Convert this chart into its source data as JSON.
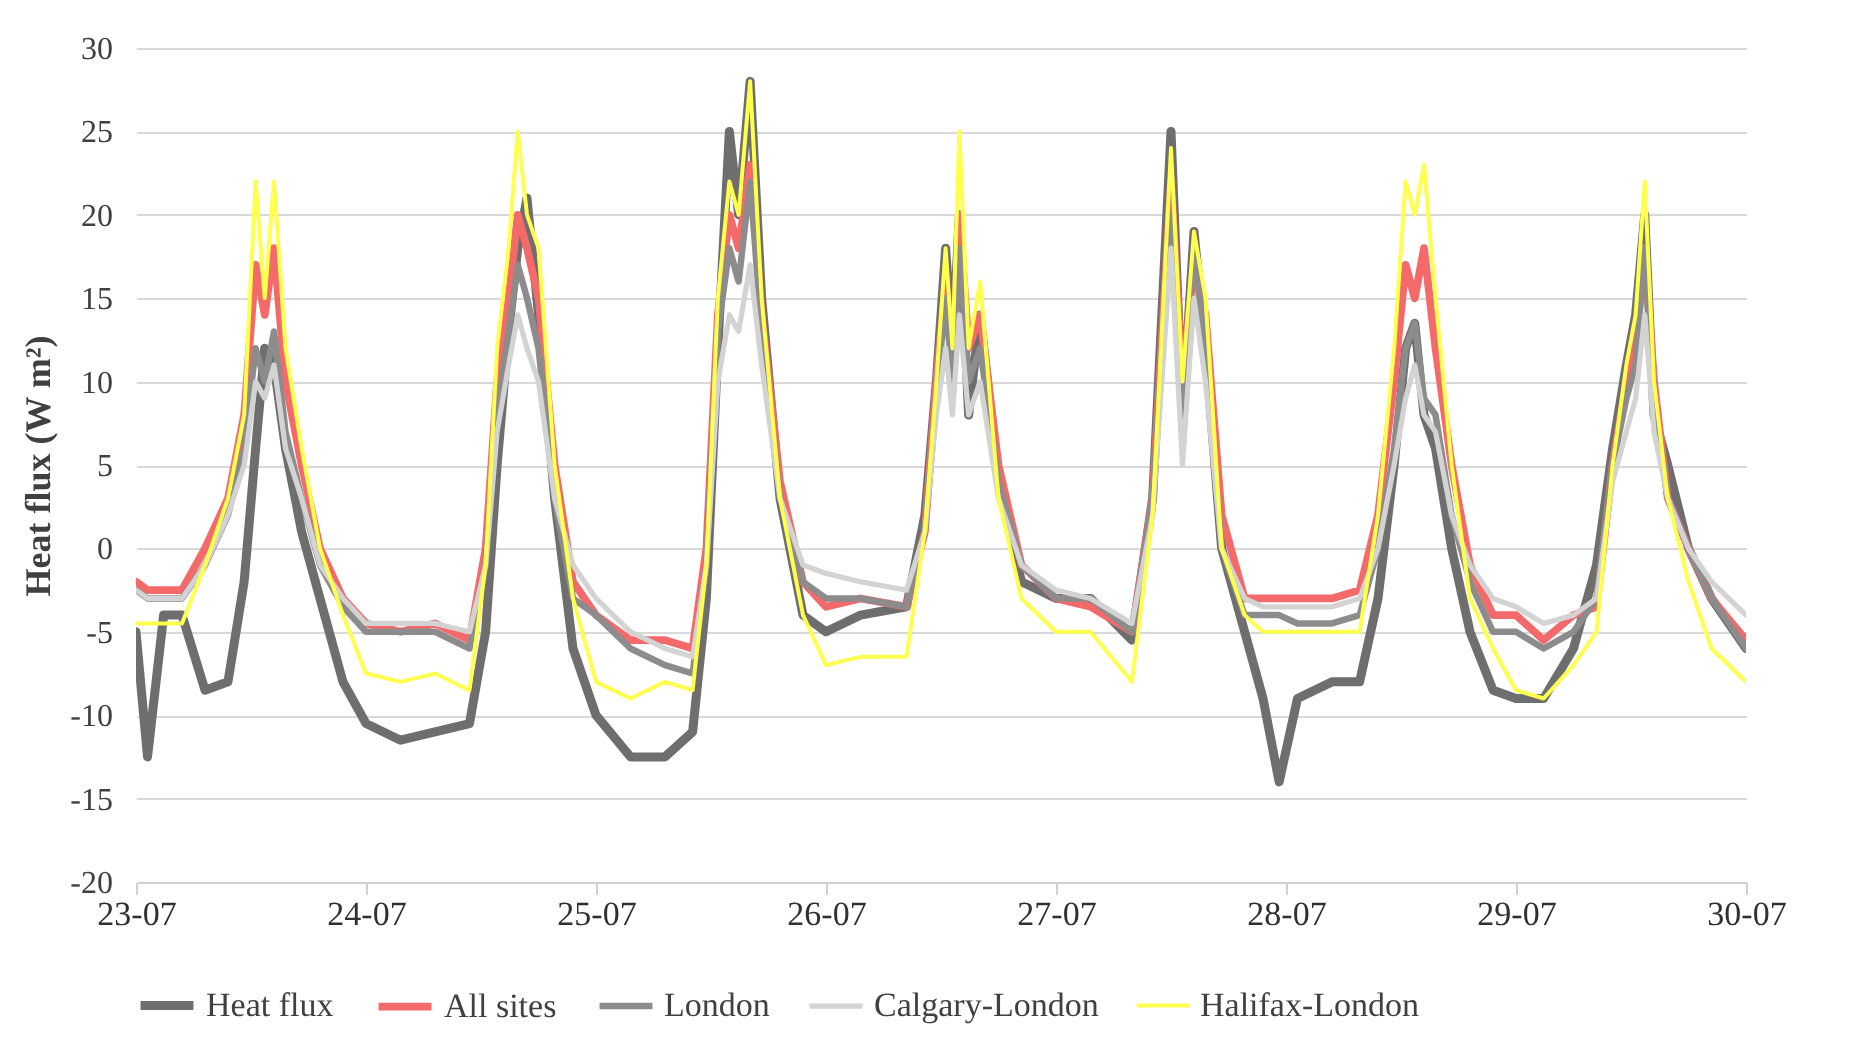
{
  "chart_data": {
    "type": "line",
    "ylabel": "Heat flux (W m²)",
    "x": [
      "--07-23T00:00",
      "--07-23T01:12",
      "--07-23T02:53",
      "--07-23T04:48",
      "--07-23T07:12",
      "--07-23T09:36",
      "--07-23T11:17",
      "--07-23T12:29",
      "--07-23T13:26",
      "--07-23T14:24",
      "--07-23T15:36",
      "--07-23T17:17",
      "--07-23T19:12",
      "--07-23T21:36",
      "--07-24T00:00",
      "--07-24T03:36",
      "--07-24T07:12",
      "--07-24T10:48",
      "--07-24T12:29",
      "--07-24T13:41",
      "--07-24T14:53",
      "--07-24T15:50",
      "--07-24T16:48",
      "--07-24T18:00",
      "--07-24T19:41",
      "--07-24T21:36",
      "--07-25T00:00",
      "--07-25T03:36",
      "--07-25T07:12",
      "--07-25T10:05",
      "--07-25T11:31",
      "--07-25T12:43",
      "--07-25T13:55",
      "--07-25T14:53",
      "--07-25T16:05",
      "--07-25T17:17",
      "--07-25T19:12",
      "--07-25T21:36",
      "--07-26T00:00",
      "--07-26T03:36",
      "--07-26T08:24",
      "--07-26T10:19",
      "--07-26T11:31",
      "--07-26T12:29",
      "--07-26T13:12",
      "--07-26T13:55",
      "--07-26T14:53",
      "--07-26T16:05",
      "--07-26T18:00",
      "--07-26T20:24",
      "--07-27T00:00",
      "--07-27T03:36",
      "--07-27T07:55",
      "--07-27T10:05",
      "--07-27T12:00",
      "--07-27T13:12",
      "--07-27T14:24",
      "--07-27T15:36",
      "--07-27T17:17",
      "--07-27T19:41",
      "--07-27T21:36",
      "--07-27T23:17",
      "--07-28T01:12",
      "--07-28T04:48",
      "--07-28T07:41",
      "--07-28T09:36",
      "--07-28T11:17",
      "--07-28T12:29",
      "--07-28T13:26",
      "--07-28T14:24",
      "--07-28T15:36",
      "--07-28T17:17",
      "--07-28T19:12",
      "--07-28T21:36",
      "--07-29T00:00",
      "--07-29T02:53",
      "--07-29T06:00",
      "--07-29T08:24",
      "--07-29T10:05",
      "--07-29T11:31",
      "--07-29T12:29",
      "--07-29T13:26",
      "--07-29T14:24",
      "--07-29T15:50",
      "--07-29T18:00",
      "--07-29T20:24",
      "--07-30T00:00"
    ],
    "series": [
      {
        "name": "Heat flux",
        "color": "#6e6e6e",
        "values": [
          -5,
          -12.5,
          -4,
          -4,
          -8.5,
          -8,
          -2,
          6,
          12,
          11,
          6,
          1,
          -3,
          -8,
          -10.5,
          -11.5,
          -11,
          -10.5,
          -5,
          5,
          13,
          18,
          21,
          14,
          3,
          -6,
          -10,
          -12.5,
          -12.5,
          -11,
          -3,
          12,
          25,
          20,
          28,
          15,
          3,
          -4,
          -5,
          -4,
          -3.5,
          2,
          10,
          18,
          12,
          20,
          8,
          14,
          4,
          -2,
          -3,
          -3,
          -5.5,
          3,
          25,
          8,
          19,
          12,
          0,
          -5,
          -9,
          -14,
          -9,
          -8,
          -8,
          -3,
          5,
          12,
          13.5,
          8,
          6,
          0,
          -5,
          -8.5,
          -9,
          -9,
          -6,
          -1,
          6,
          11,
          14,
          20,
          8,
          5,
          0,
          -3,
          -6
        ]
      },
      {
        "name": "All sites",
        "color": "#f46a6a",
        "values": [
          -2,
          -2.5,
          -2.5,
          -2.5,
          0,
          3,
          8,
          17,
          14,
          18,
          10,
          5,
          0,
          -3,
          -4.5,
          -5,
          -4.5,
          -5.5,
          0,
          10,
          15,
          20,
          18,
          15,
          5,
          -2,
          -4,
          -5.5,
          -5.5,
          -6,
          0,
          14,
          20,
          18,
          23,
          14,
          4,
          -2,
          -3.5,
          -3,
          -3.5,
          1,
          10,
          16,
          11,
          20,
          12,
          14,
          5,
          -1,
          -3,
          -3.5,
          -5,
          3,
          22,
          10,
          17,
          14,
          2,
          -3,
          -3,
          -3,
          -3,
          -3,
          -2.5,
          2,
          10,
          17,
          15,
          18,
          12,
          5,
          -1,
          -4,
          -4,
          -5.5,
          -4,
          -3.5,
          5,
          10,
          12,
          18,
          10,
          3,
          0,
          -3,
          -5.5
        ]
      },
      {
        "name": "London",
        "color": "#8c8c8c",
        "values": [
          -2.5,
          -3,
          -3,
          -3,
          -1,
          2,
          6,
          12,
          10,
          13,
          7,
          3,
          -1,
          -3.5,
          -5,
          -5,
          -5,
          -6,
          -1,
          8,
          13,
          17,
          15,
          12,
          3,
          -3,
          -4,
          -6,
          -7,
          -7.5,
          -1,
          13,
          18,
          16,
          22,
          13,
          3,
          -2,
          -3,
          -3,
          -3.5,
          1,
          9,
          15,
          10,
          18,
          10,
          12,
          4,
          -1,
          -3,
          -3,
          -5,
          3,
          20,
          8,
          18,
          12,
          0,
          -4,
          -4,
          -4,
          -4.5,
          -4.5,
          -4,
          0,
          6,
          12,
          13.5,
          9,
          8,
          2,
          -2,
          -5,
          -5,
          -6,
          -5,
          -3,
          5,
          9,
          11,
          18,
          9,
          3,
          0,
          -3,
          -6
        ]
      },
      {
        "name": "Calgary-London",
        "color": "#d3d3d3",
        "values": [
          -2.5,
          -3,
          -3,
          -3,
          -1,
          2,
          5,
          10,
          9,
          11,
          6,
          3,
          -1,
          -3,
          -4.5,
          -4.5,
          -4.5,
          -5,
          -1,
          7,
          11,
          14,
          12,
          10,
          3,
          -1,
          -3,
          -5,
          -6,
          -6.5,
          -1,
          10,
          14,
          13,
          17,
          11,
          3,
          -1,
          -1.5,
          -2,
          -2.5,
          1,
          8,
          12,
          8,
          14,
          8,
          10,
          3,
          -1,
          -2.5,
          -3,
          -4.5,
          2,
          18,
          5,
          15,
          10,
          0,
          -3,
          -3.5,
          -3.5,
          -3.5,
          -3.5,
          -3,
          0,
          5,
          9,
          11,
          8,
          7,
          2,
          -1,
          -3,
          -3.5,
          -4.5,
          -4,
          -3,
          4,
          7,
          9,
          14,
          7,
          3,
          0,
          -2,
          -4
        ]
      },
      {
        "name": "Halifax-London",
        "color": "#ffff4d",
        "values": [
          -4.5,
          -4.5,
          -4.5,
          -4.5,
          -1,
          3,
          8,
          22,
          15,
          22,
          12,
          6,
          0,
          -4,
          -7.5,
          -8,
          -7.5,
          -8.5,
          -1,
          12,
          18,
          25,
          20,
          18,
          5,
          -3,
          -8,
          -9,
          -8,
          -8.5,
          -1,
          15,
          22,
          20,
          28,
          15,
          3,
          -4,
          -7,
          -6.5,
          -6.5,
          1,
          10,
          18,
          12,
          25,
          12,
          16,
          3,
          -3,
          -5,
          -5,
          -8,
          2,
          24,
          10,
          19,
          15,
          0,
          -4,
          -5,
          -5,
          -5,
          -5,
          -5,
          2,
          12,
          22,
          20,
          23,
          15,
          5,
          -3,
          -6,
          -8.5,
          -9,
          -7,
          -5,
          5,
          11,
          14,
          22,
          10,
          3,
          -2,
          -6,
          -8
        ]
      }
    ],
    "xlim": [
      "--07-23",
      "--07-30"
    ],
    "xticks": [
      {
        "value": "--07-23",
        "label": "23-07"
      },
      {
        "value": "--07-24",
        "label": "24-07"
      },
      {
        "value": "--07-25",
        "label": "25-07"
      },
      {
        "value": "--07-26",
        "label": "26-07"
      },
      {
        "value": "--07-27",
        "label": "27-07"
      },
      {
        "value": "--07-28",
        "label": "28-07"
      },
      {
        "value": "--07-29",
        "label": "29-07"
      },
      {
        "value": "--07-30",
        "label": "30-07"
      }
    ],
    "ylim": [
      -20,
      30
    ],
    "yticks": [
      -20,
      -15,
      -10,
      -5,
      0,
      5,
      10,
      15,
      20,
      25,
      30
    ],
    "grid": "y",
    "legend": "bottom",
    "marker": "none",
    "line_style": "solid"
  }
}
